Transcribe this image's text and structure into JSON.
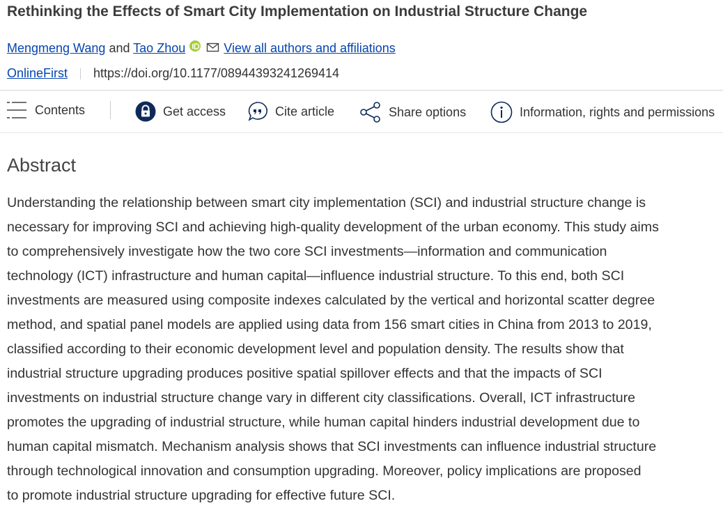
{
  "header": {
    "title": "Rethinking the Effects of Smart City Implementation on Industrial Structure Change",
    "authors": [
      "Mengmeng Wang",
      "Tao Zhou"
    ],
    "conjunction": "and",
    "affiliations_link": "View all authors and affiliations",
    "status": "OnlineFirst",
    "doi": "https://doi.org/10.1177/08944393241269414"
  },
  "toolbar": [
    "Contents",
    "Get access",
    "Cite article",
    "Share options",
    "Information, rights and permissions"
  ],
  "abstract": {
    "heading": "Abstract",
    "lines": [
      "Understanding the relationship between smart city implementation (SCI) and industrial structure change is",
      "necessary for improving SCI and achieving high-quality development of the urban economy. This study aims",
      "to comprehensively investigate how the two core SCI investments—information and communication",
      "technology (ICT) infrastructure and human capital—influence industrial structure. To this end, both SCI",
      "investments are measured using composite indexes calculated by the vertical and horizontal scatter degree",
      "method, and spatial panel models are applied using data from 156 smart cities in China from 2013 to 2019,",
      "classified according to their economic development level and population density. The results show that",
      "industrial structure upgrading produces positive spatial spillover effects and that the impacts of SCI",
      "investments on industrial structure change vary in different city classifications. Overall, ICT infrastructure",
      "promotes the upgrading of industrial structure, while human capital hinders industrial development due to",
      "human capital mismatch. Mechanism analysis shows that SCI investments can influence industrial structure",
      "through technological innovation and consumption upgrading. Moreover, policy implications are proposed",
      "to promote industrial structure upgrading for effective future SCI."
    ]
  }
}
